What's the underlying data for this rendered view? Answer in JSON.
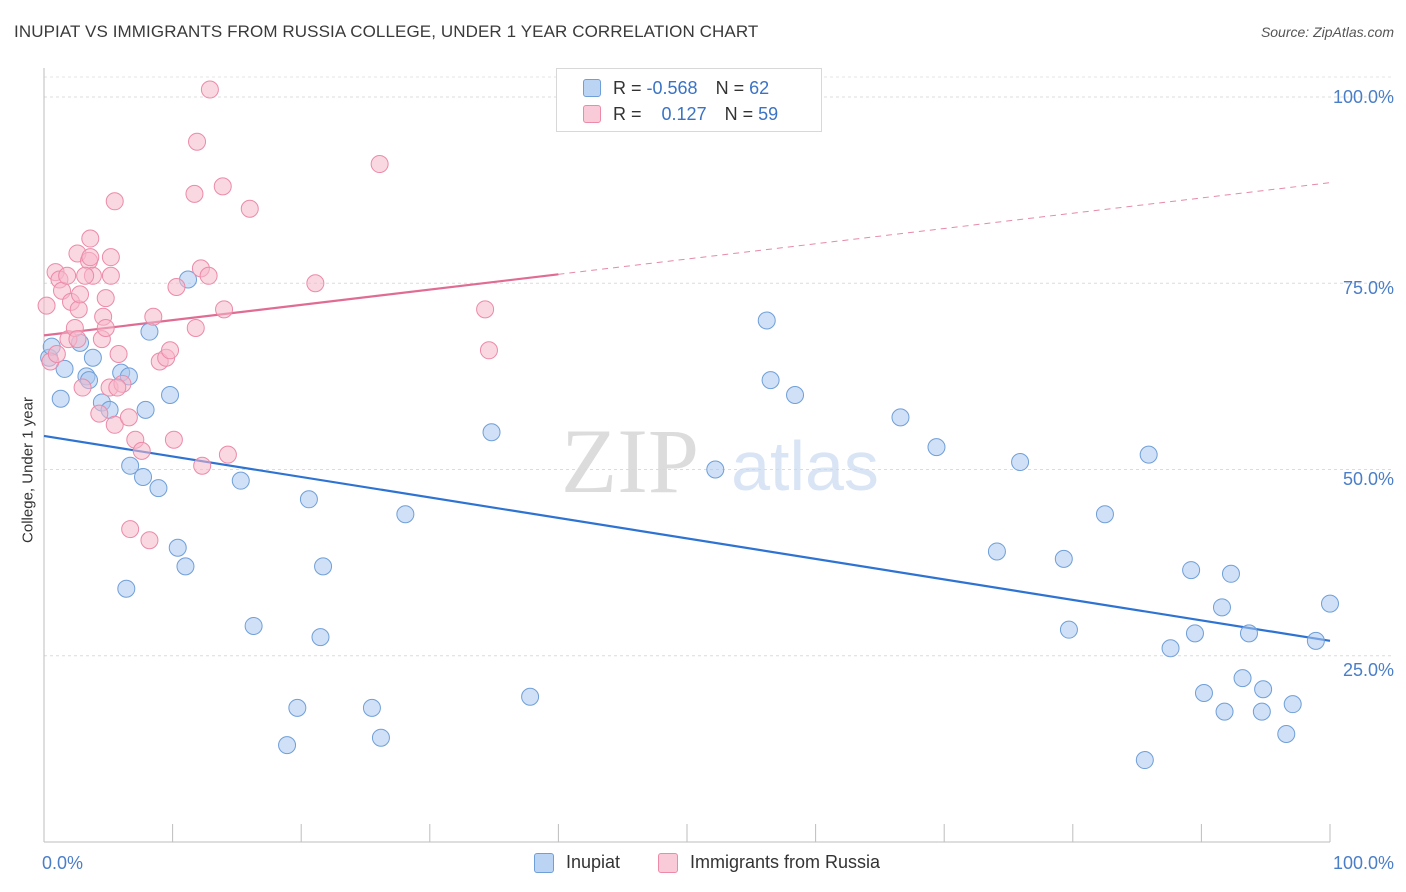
{
  "header": {
    "title": "INUPIAT VS IMMIGRANTS FROM RUSSIA COLLEGE, UNDER 1 YEAR CORRELATION CHART",
    "source": "Source: ZipAtlas.com"
  },
  "watermark": {
    "zip": "ZIP",
    "atlas": "atlas"
  },
  "legend": {
    "rows": [
      {
        "r_label": "R =",
        "r_value": "-0.568",
        "n_label": "N =",
        "n_value": "62",
        "color": "#a9c7ef"
      },
      {
        "r_label": "R =",
        "r_value": "0.127",
        "n_label": "N =",
        "n_value": "59",
        "color": "#f6b8cb"
      }
    ]
  },
  "bottom_legend": {
    "inupiat": "Inupiat",
    "russia": "Immigrants from Russia"
  },
  "axes": {
    "ylabel": "College, Under 1 year",
    "yticks": [
      "100.0%",
      "75.0%",
      "50.0%",
      "25.0%"
    ],
    "x_left": "0.0%",
    "x_right": "100.0%"
  },
  "chart_data": {
    "type": "scatter",
    "title": "INUPIAT VS IMMIGRANTS FROM RUSSIA COLLEGE, UNDER 1 YEAR CORRELATION CHART",
    "xlabel": "",
    "ylabel": "College, Under 1 year",
    "xlim": [
      0,
      100
    ],
    "ylim": [
      0,
      102
    ],
    "grid": true,
    "legend_position": "top-center",
    "series": [
      {
        "name": "Inupiat",
        "color": "#a9c7ef",
        "edge": "#6f9fd8",
        "line_color": "#2e73d1",
        "trend": {
          "x": [
            0,
            100
          ],
          "y": [
            54.5,
            27.0
          ],
          "dashed_from": null
        },
        "points": [
          [
            0.4,
            65.0
          ],
          [
            0.6,
            66.5
          ],
          [
            1.3,
            59.5
          ],
          [
            1.6,
            63.5
          ],
          [
            2.8,
            67.0
          ],
          [
            3.3,
            62.5
          ],
          [
            3.5,
            62.0
          ],
          [
            3.8,
            65.0
          ],
          [
            4.5,
            59.0
          ],
          [
            5.1,
            58.0
          ],
          [
            6.0,
            63.0
          ],
          [
            6.4,
            34.0
          ],
          [
            6.6,
            62.5
          ],
          [
            6.7,
            50.5
          ],
          [
            7.7,
            49.0
          ],
          [
            7.9,
            58.0
          ],
          [
            8.2,
            68.5
          ],
          [
            8.9,
            47.5
          ],
          [
            9.8,
            60.0
          ],
          [
            10.4,
            39.5
          ],
          [
            11.0,
            37.0
          ],
          [
            11.2,
            75.5
          ],
          [
            15.3,
            48.5
          ],
          [
            16.3,
            29.0
          ],
          [
            18.9,
            13.0
          ],
          [
            19.7,
            18.0
          ],
          [
            20.6,
            46.0
          ],
          [
            21.5,
            27.5
          ],
          [
            21.7,
            37.0
          ],
          [
            25.5,
            18.0
          ],
          [
            26.2,
            14.0
          ],
          [
            28.1,
            44.0
          ],
          [
            34.8,
            55.0
          ],
          [
            37.8,
            19.5
          ],
          [
            52.2,
            50.0
          ],
          [
            56.2,
            70.0
          ],
          [
            56.5,
            62.0
          ],
          [
            58.4,
            60.0
          ],
          [
            66.6,
            57.0
          ],
          [
            69.4,
            53.0
          ],
          [
            74.1,
            39.0
          ],
          [
            75.9,
            51.0
          ],
          [
            79.3,
            38.0
          ],
          [
            79.7,
            28.5
          ],
          [
            82.5,
            44.0
          ],
          [
            85.6,
            11.0
          ],
          [
            85.9,
            52.0
          ],
          [
            87.6,
            26.0
          ],
          [
            89.2,
            36.5
          ],
          [
            89.5,
            28.0
          ],
          [
            90.2,
            20.0
          ],
          [
            91.6,
            31.5
          ],
          [
            91.8,
            17.5
          ],
          [
            92.3,
            36.0
          ],
          [
            93.2,
            22.0
          ],
          [
            93.7,
            28.0
          ],
          [
            94.7,
            17.5
          ],
          [
            94.8,
            20.5
          ],
          [
            96.6,
            14.5
          ],
          [
            97.1,
            18.5
          ],
          [
            98.9,
            27.0
          ],
          [
            100.0,
            32.0
          ]
        ]
      },
      {
        "name": "Immigrants from Russia",
        "color": "#f6b8cb",
        "edge": "#ec8aa8",
        "line_color": "#e06c93",
        "trend": {
          "x": [
            0,
            100
          ],
          "y": [
            68.0,
            88.5
          ],
          "dashed_from": 40
        },
        "points": [
          [
            0.2,
            72.0
          ],
          [
            0.5,
            64.5
          ],
          [
            0.9,
            76.5
          ],
          [
            1.2,
            75.5
          ],
          [
            1.4,
            74.0
          ],
          [
            1.8,
            76.0
          ],
          [
            1.9,
            67.5
          ],
          [
            2.1,
            72.5
          ],
          [
            2.4,
            69.0
          ],
          [
            2.6,
            67.5
          ],
          [
            2.6,
            79.0
          ],
          [
            2.7,
            71.5
          ],
          [
            2.8,
            73.5
          ],
          [
            3.0,
            61.0
          ],
          [
            3.5,
            78.0
          ],
          [
            3.6,
            81.0
          ],
          [
            3.6,
            78.5
          ],
          [
            3.8,
            76.0
          ],
          [
            4.3,
            57.5
          ],
          [
            4.5,
            67.5
          ],
          [
            4.6,
            70.5
          ],
          [
            4.8,
            69.0
          ],
          [
            4.8,
            73.0
          ],
          [
            5.1,
            61.0
          ],
          [
            5.2,
            76.0
          ],
          [
            5.2,
            78.5
          ],
          [
            5.5,
            86.0
          ],
          [
            5.5,
            56.0
          ],
          [
            5.8,
            65.5
          ],
          [
            6.1,
            61.5
          ],
          [
            6.6,
            57.0
          ],
          [
            6.7,
            42.0
          ],
          [
            7.1,
            54.0
          ],
          [
            7.6,
            52.5
          ],
          [
            8.2,
            40.5
          ],
          [
            8.5,
            70.5
          ],
          [
            9.0,
            64.5
          ],
          [
            9.5,
            65.0
          ],
          [
            9.8,
            66.0
          ],
          [
            10.1,
            54.0
          ],
          [
            10.3,
            74.5
          ],
          [
            11.7,
            87.0
          ],
          [
            11.9,
            94.0
          ],
          [
            11.8,
            69.0
          ],
          [
            12.2,
            77.0
          ],
          [
            12.3,
            50.5
          ],
          [
            12.8,
            76.0
          ],
          [
            12.9,
            101.0
          ],
          [
            13.9,
            88.0
          ],
          [
            14.0,
            71.5
          ],
          [
            14.3,
            52.0
          ],
          [
            16.0,
            85.0
          ],
          [
            21.1,
            75.0
          ],
          [
            26.1,
            91.0
          ],
          [
            34.3,
            71.5
          ],
          [
            34.6,
            66.0
          ],
          [
            3.2,
            76.0
          ],
          [
            5.7,
            61.0
          ],
          [
            1.0,
            65.5
          ]
        ]
      }
    ]
  }
}
